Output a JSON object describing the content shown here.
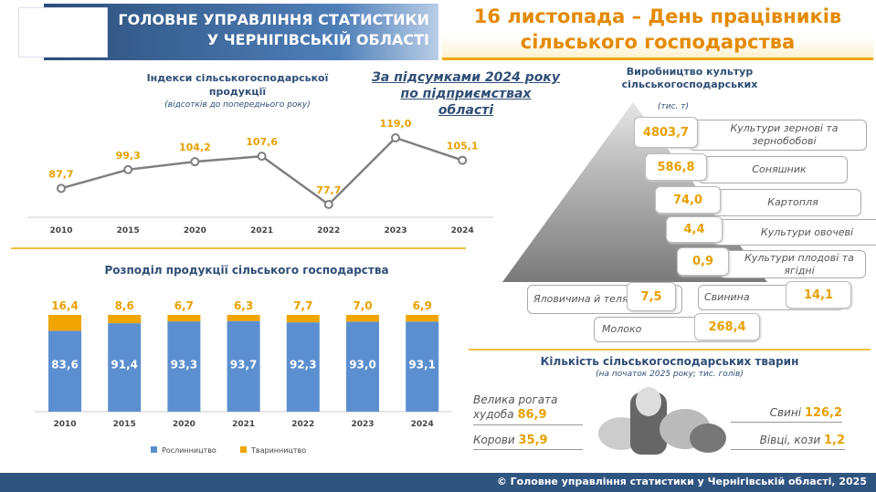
{
  "header": {
    "org_line1": "ГОЛОВНЕ УПРАВЛІННЯ СТАТИСТИКИ",
    "org_line2": "У ЧЕРНІГІВСЬКІЙ ОБЛАСТІ",
    "title_line1": "16 листопада – День працівників",
    "title_line2": "сільського господарства"
  },
  "summary": {
    "line1": "За підсумками 2024 року",
    "line2": "по підприємствах",
    "line3": "області"
  },
  "index_chart": {
    "title_line1": "Індекси сільськогосподарської",
    "title_line2": "продукції",
    "subtitle": "(відсотків до попереднього року)"
  },
  "dist_chart": {
    "title": "Розподіл продукції сільського господарства",
    "legend": [
      "Рослинництво",
      "Тваринництво"
    ]
  },
  "chart_data": [
    {
      "type": "line",
      "title": "Індекси сільськогосподарської продукції",
      "categories": [
        "2010",
        "2015",
        "2020",
        "2021",
        "2022",
        "2023",
        "2024"
      ],
      "values": [
        87.7,
        99.3,
        104.2,
        107.6,
        77.7,
        119.0,
        105.1
      ],
      "labels": [
        "87,7",
        "99,3",
        "104,2",
        "107,6",
        "77,7",
        "119,0",
        "105,1"
      ],
      "color": "#7f7f7f",
      "label_color": "#e8a000"
    },
    {
      "type": "bar",
      "stacked": true,
      "title": "Розподіл продукції сільського господарства",
      "categories": [
        "2010",
        "2015",
        "2020",
        "2021",
        "2022",
        "2023",
        "2024"
      ],
      "series": [
        {
          "name": "Рослинництво",
          "values": [
            83.6,
            91.4,
            93.3,
            93.7,
            92.3,
            93.0,
            93.1
          ],
          "labels": [
            "83,6",
            "91,4",
            "93,3",
            "93,7",
            "92,3",
            "93,0",
            "93,1"
          ],
          "color": "#5b8fd0"
        },
        {
          "name": "Тваринництво",
          "values": [
            16.4,
            8.6,
            6.7,
            6.3,
            7.7,
            7.0,
            6.9
          ],
          "labels": [
            "16,4",
            "8,6",
            "6,7",
            "6,3",
            "7,7",
            "7,0",
            "6,9"
          ],
          "color": "#f0a500"
        }
      ],
      "ylim": [
        0,
        100
      ]
    }
  ],
  "production": {
    "title_line1": "Виробництво культур",
    "title_line2": "сільськогосподарських",
    "unit": "(тис. т)",
    "crops": [
      {
        "value": "4803,7",
        "label": "Культури зернові та зернобобові"
      },
      {
        "value": "586,8",
        "label": "Соняшник"
      },
      {
        "value": "74,0",
        "label": "Картопля"
      },
      {
        "value": "4,4",
        "label": "Культури овочеві"
      },
      {
        "value": "0,9",
        "label": "Культури плодові та ягідні"
      }
    ],
    "beef": {
      "value": "7,5",
      "label": "Яловичина й телятина"
    },
    "pork": {
      "value": "14,1",
      "label": "Свинина"
    },
    "milk": {
      "value": "268,4",
      "label": "Молоко"
    }
  },
  "animals": {
    "title": "Кількість сільськогосподарських тварин",
    "subtitle": "(на початок 2025 року;  тис. голів)",
    "cattle_label": "Велика рогата худоба",
    "cattle": "86,9",
    "cows_label": "Корови",
    "cows": "35,9",
    "pigs_label": "Свині",
    "pigs": "126,2",
    "sheep_label": "Вівці, кози",
    "sheep": "1,2"
  },
  "footer": "© Головне управління статистики у Чернігівській області, 2025"
}
